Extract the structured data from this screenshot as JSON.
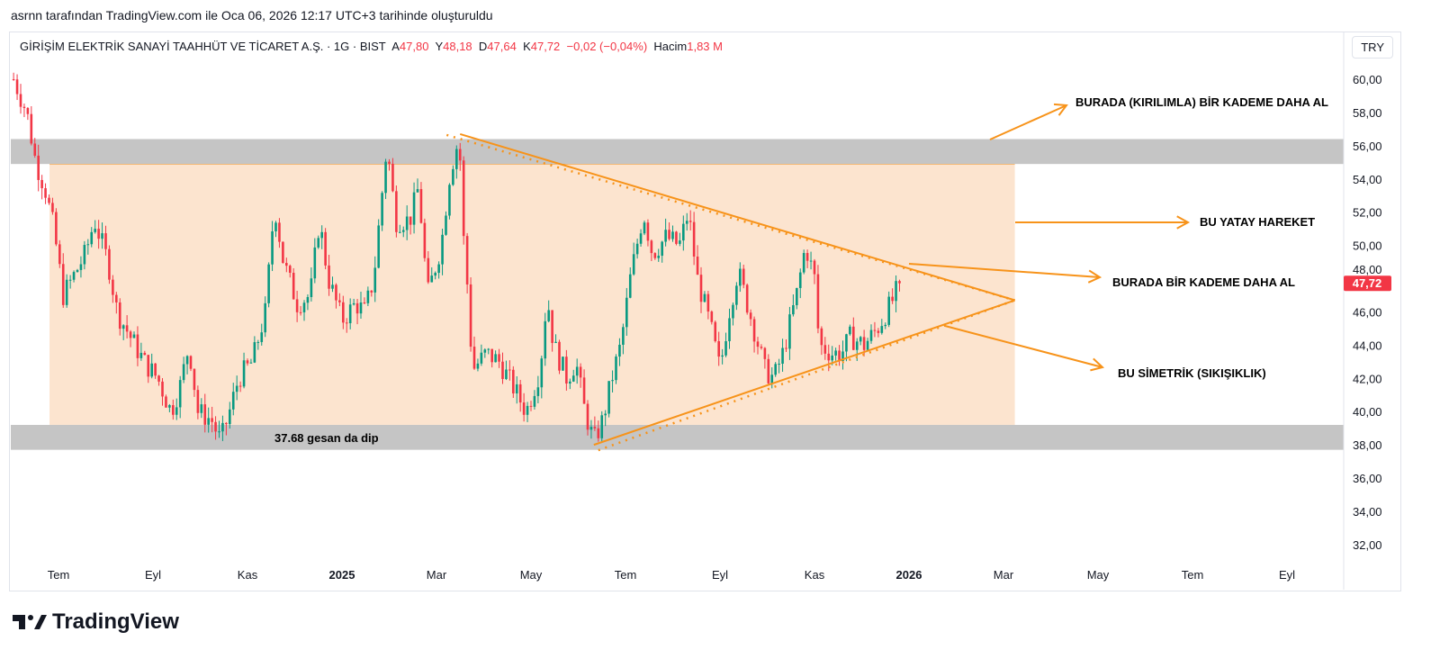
{
  "credit": "asrnn tarafından TradingView.com ile Oca 06, 2026 12:17 UTC+3 tarihinde oluşturuldu",
  "legend": {
    "symbol": "GİRİŞİM ELEKTRİK SANAYİ TAAHHÜT VE TİCARET A.Ş. · 1G · BIST",
    "o_label": "A",
    "o": "47,80",
    "h_label": "Y",
    "h": "48,18",
    "l_label": "D",
    "l": "47,64",
    "c_label": "K",
    "c": "47,72",
    "change": "−0,02 (−0,04%)",
    "vol_label": "Hacim",
    "vol": "1,83 M"
  },
  "currency": "TRY",
  "brand": "TradingView",
  "colors": {
    "up": "#089981",
    "down": "#f23645",
    "orange": "#f7931a",
    "zone": "#c5c5c5",
    "range": "#fce4cf"
  },
  "chart_data": {
    "type": "candlestick",
    "x_unit": "months since 2024-07-01",
    "ylim": [
      31,
      61.5
    ],
    "yticks": [
      "60,00",
      "58,00",
      "56,00",
      "54,00",
      "52,00",
      "50,00",
      "48,00",
      "46,00",
      "44,00",
      "42,00",
      "40,00",
      "38,00",
      "36,00",
      "34,00",
      "32,00"
    ],
    "ytick_values": [
      60,
      58,
      56,
      54,
      52,
      50,
      48,
      46,
      44,
      42,
      40,
      38,
      36,
      34,
      32
    ],
    "xticks": [
      {
        "t": 0,
        "label": "Tem"
      },
      {
        "t": 2,
        "label": "Eyl"
      },
      {
        "t": 4,
        "label": "Kas"
      },
      {
        "t": 6,
        "label": "2025",
        "bold": true
      },
      {
        "t": 8,
        "label": "Mar"
      },
      {
        "t": 10,
        "label": "May"
      },
      {
        "t": 12,
        "label": "Tem"
      },
      {
        "t": 14,
        "label": "Eyl"
      },
      {
        "t": 16,
        "label": "Kas"
      },
      {
        "t": 18,
        "label": "2026",
        "bold": true
      },
      {
        "t": 20,
        "label": "Mar"
      },
      {
        "t": 22,
        "label": "May"
      },
      {
        "t": 24,
        "label": "Tem"
      },
      {
        "t": 26,
        "label": "Eyl"
      }
    ],
    "last_price": "47,72",
    "last_value": 47.72,
    "close_path": [
      [
        -0.95,
        60
      ],
      [
        -0.67,
        58
      ],
      [
        -0.48,
        55
      ],
      [
        -0.29,
        53.5
      ],
      [
        -0.1,
        51
      ],
      [
        0.1,
        47
      ],
      [
        0.29,
        48
      ],
      [
        0.57,
        49.5
      ],
      [
        0.76,
        51.5
      ],
      [
        1.05,
        49
      ],
      [
        1.24,
        46
      ],
      [
        1.52,
        44.5
      ],
      [
        1.81,
        43
      ],
      [
        2.1,
        42
      ],
      [
        2.38,
        40
      ],
      [
        2.57,
        41.5
      ],
      [
        2.76,
        44
      ],
      [
        2.95,
        40
      ],
      [
        3.24,
        39.5
      ],
      [
        3.43,
        38.2
      ],
      [
        3.62,
        40
      ],
      [
        3.81,
        42
      ],
      [
        4.1,
        43
      ],
      [
        4.38,
        46
      ],
      [
        4.57,
        52.5
      ],
      [
        4.76,
        49
      ],
      [
        5.05,
        46.5
      ],
      [
        5.33,
        47
      ],
      [
        5.52,
        51.5
      ],
      [
        5.71,
        48
      ],
      [
        6.0,
        45.5
      ],
      [
        6.29,
        46.5
      ],
      [
        6.48,
        46
      ],
      [
        6.67,
        48
      ],
      [
        6.86,
        53.5
      ],
      [
        6.95,
        56
      ],
      [
        7.14,
        51.5
      ],
      [
        7.43,
        51.5
      ],
      [
        7.62,
        53.5
      ],
      [
        7.81,
        47
      ],
      [
        8.1,
        50
      ],
      [
        8.29,
        54.5
      ],
      [
        8.48,
        56.5
      ],
      [
        8.57,
        50.5
      ],
      [
        8.67,
        47
      ],
      [
        8.76,
        42.5
      ],
      [
        9.05,
        43.5
      ],
      [
        9.33,
        43
      ],
      [
        9.62,
        41.5
      ],
      [
        9.9,
        40
      ],
      [
        10.19,
        42.5
      ],
      [
        10.34,
        47
      ],
      [
        10.48,
        44
      ],
      [
        10.76,
        42
      ],
      [
        10.95,
        43
      ],
      [
        11.14,
        40
      ],
      [
        11.33,
        38.2
      ],
      [
        11.52,
        39.5
      ],
      [
        11.71,
        42
      ],
      [
        11.9,
        44
      ],
      [
        12.1,
        48
      ],
      [
        12.38,
        52
      ],
      [
        12.57,
        49.5
      ],
      [
        12.86,
        50.5
      ],
      [
        13.14,
        50
      ],
      [
        13.33,
        52
      ],
      [
        13.52,
        48
      ],
      [
        13.81,
        45
      ],
      [
        14.0,
        42.5
      ],
      [
        14.19,
        46
      ],
      [
        14.38,
        48.5
      ],
      [
        14.67,
        45.5
      ],
      [
        14.95,
        42.5
      ],
      [
        15.14,
        42
      ],
      [
        15.33,
        43.5
      ],
      [
        15.62,
        47
      ],
      [
        15.81,
        50
      ],
      [
        16.0,
        48
      ],
      [
        16.1,
        44
      ],
      [
        16.38,
        43.5
      ],
      [
        16.57,
        43.5
      ],
      [
        16.76,
        44.5
      ],
      [
        17.05,
        44
      ],
      [
        17.33,
        45
      ],
      [
        17.62,
        46.5
      ],
      [
        17.81,
        47.72
      ]
    ],
    "zones": [
      {
        "name": "resistance",
        "from": 54.9,
        "to": 56.4
      },
      {
        "name": "support",
        "from": 37.7,
        "to": 39.2
      }
    ],
    "range_box": {
      "t_from": -0.19,
      "t_to": 20.24,
      "from": 39.2,
      "to": 54.9
    },
    "triangle": {
      "upper": [
        [
          8.5,
          56.7
        ],
        [
          20.24,
          46.7
        ]
      ],
      "lower": [
        [
          11.33,
          38.0
        ],
        [
          20.24,
          46.7
        ]
      ]
    },
    "annotations": [
      {
        "text": "BURADA (KIRILIMLA) BİR KADEME DAHA AL"
      },
      {
        "text": "BU YATAY HAREKET"
      },
      {
        "text": "BURADA BİR KADEME DAHA AL"
      },
      {
        "text": "BU SİMETRİK (SIKIŞIKLIK)"
      },
      {
        "text": "37.68 gesan da dip"
      }
    ]
  }
}
